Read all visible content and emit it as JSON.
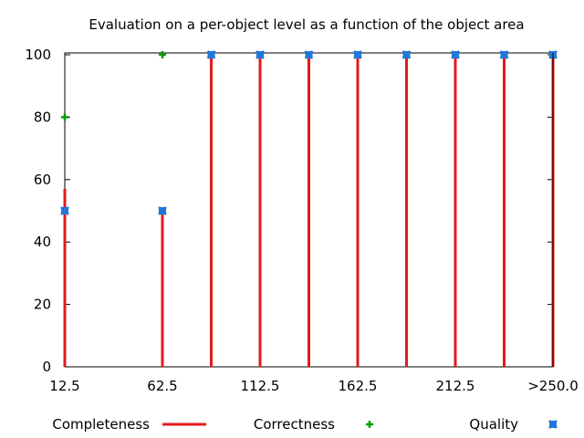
{
  "chart_data": {
    "type": "bar",
    "title": "Evaluation on a per-object level as a function of the object area",
    "xlabel": "",
    "ylabel": "",
    "xlim": [
      12.5,
      262.5
    ],
    "ylim": [
      0,
      100
    ],
    "xticks": [
      {
        "value": 12.5,
        "label": "12.5"
      },
      {
        "value": 62.5,
        "label": "62.5"
      },
      {
        "value": 112.5,
        "label": "112.5"
      },
      {
        "value": 162.5,
        "label": "162.5"
      },
      {
        "value": 212.5,
        "label": "212.5"
      },
      {
        "value": 262.5,
        "label": ">250.0"
      }
    ],
    "yticks": [
      0,
      20,
      40,
      60,
      80,
      100
    ],
    "grid": false,
    "legend_position": "bottom",
    "series": [
      {
        "name": "Completeness",
        "style": "impulses",
        "color": "#e41a1c",
        "points": [
          [
            12.5,
            57
          ],
          [
            62.5,
            50
          ],
          [
            87.5,
            100
          ],
          [
            112.5,
            100
          ],
          [
            137.5,
            100
          ],
          [
            162.5,
            100
          ],
          [
            187.5,
            100
          ],
          [
            212.5,
            100
          ],
          [
            237.5,
            100
          ],
          [
            262.5,
            100
          ]
        ]
      },
      {
        "name": "Correctness",
        "style": "plus",
        "color": "#00a000",
        "points": [
          [
            12.5,
            80
          ],
          [
            62.5,
            100
          ],
          [
            87.5,
            100
          ],
          [
            112.5,
            100
          ],
          [
            137.5,
            100
          ],
          [
            162.5,
            100
          ],
          [
            187.5,
            100
          ],
          [
            212.5,
            100
          ],
          [
            237.5,
            100
          ],
          [
            262.5,
            100
          ]
        ]
      },
      {
        "name": "Quality",
        "style": "square-cross",
        "color": "#1f78d8",
        "points": [
          [
            12.5,
            50
          ],
          [
            62.5,
            50
          ],
          [
            87.5,
            100
          ],
          [
            112.5,
            100
          ],
          [
            137.5,
            100
          ],
          [
            162.5,
            100
          ],
          [
            187.5,
            100
          ],
          [
            212.5,
            100
          ],
          [
            237.5,
            100
          ],
          [
            262.5,
            100
          ]
        ]
      }
    ]
  }
}
